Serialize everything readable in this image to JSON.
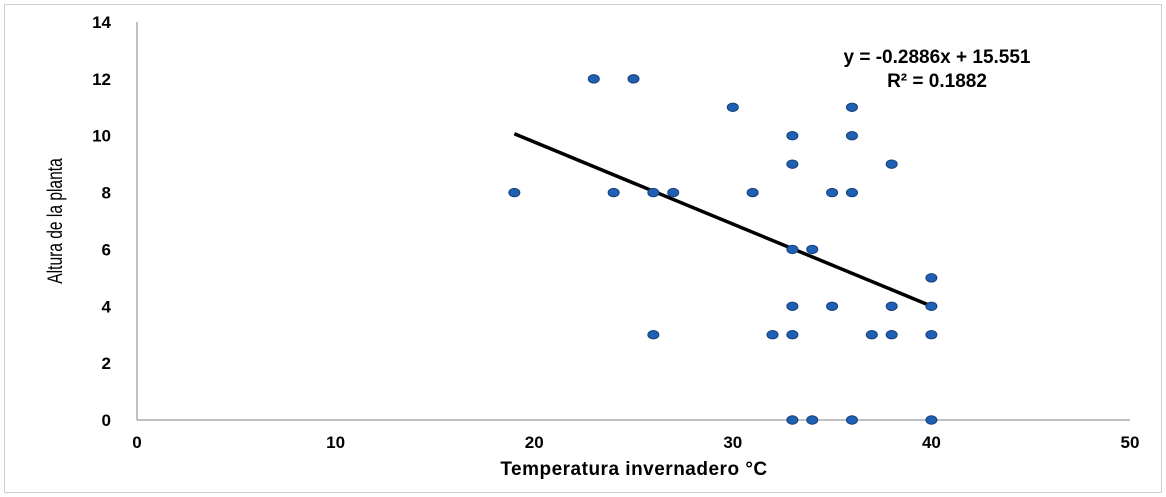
{
  "chart_data": {
    "type": "scatter",
    "xlabel": "Temperatura invernadero °C",
    "ylabel": "Altura de la planta",
    "xlim": [
      0,
      50
    ],
    "ylim": [
      0,
      14
    ],
    "xticks": [
      "0",
      "10",
      "20",
      "30",
      "40",
      "50"
    ],
    "yticks": [
      "0",
      "2",
      "4",
      "6",
      "8",
      "10",
      "12",
      "14"
    ],
    "grid": false,
    "legend": "none",
    "series": [
      {
        "marker_color": "#1f5fb4",
        "points": [
          [
            19,
            8
          ],
          [
            23,
            12
          ],
          [
            24,
            8
          ],
          [
            25,
            12
          ],
          [
            26,
            8
          ],
          [
            26,
            3
          ],
          [
            27,
            8
          ],
          [
            30,
            11
          ],
          [
            31,
            8
          ],
          [
            32,
            3
          ],
          [
            33,
            10
          ],
          [
            33,
            9
          ],
          [
            33,
            6
          ],
          [
            33,
            4
          ],
          [
            33,
            3
          ],
          [
            33,
            0
          ],
          [
            34,
            6
          ],
          [
            34,
            0
          ],
          [
            35,
            8
          ],
          [
            35,
            4
          ],
          [
            36,
            11
          ],
          [
            36,
            10
          ],
          [
            36,
            8
          ],
          [
            36,
            0
          ],
          [
            37,
            3
          ],
          [
            38,
            9
          ],
          [
            38,
            4
          ],
          [
            38,
            3
          ],
          [
            40,
            5
          ],
          [
            40,
            4
          ],
          [
            40,
            3
          ],
          [
            40,
            0
          ]
        ]
      }
    ],
    "trendline": {
      "type": "linear",
      "slope": -0.2886,
      "intercept": 15.551,
      "x_range": [
        19,
        40
      ],
      "color": "#000000",
      "equation_text": "y = -0.2886x + 15.551",
      "r2_text": "R² = 0.1882"
    }
  }
}
